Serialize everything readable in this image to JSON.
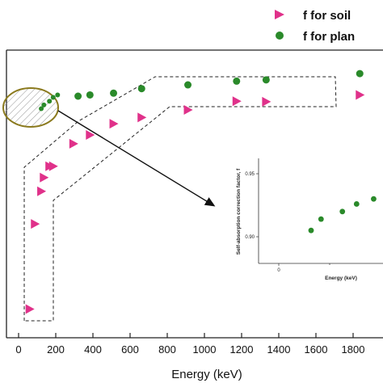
{
  "chart_data": [
    {
      "type": "scatter",
      "xlabel": "Energy (keV)",
      "ylabel": "",
      "xlim": [
        -20,
        1900
      ],
      "x_ticks": [
        "0",
        "200",
        "400",
        "600",
        "800",
        "1000",
        "1200",
        "1400",
        "1600",
        "1800"
      ],
      "legend_position": "top-right",
      "series": [
        {
          "name": "f for soil",
          "marker": "triangle-right",
          "color": "#e0318a",
          "points": [
            {
              "x": 59.5,
              "y": 0.05
            },
            {
              "x": 88,
              "y": 0.39
            },
            {
              "x": 122,
              "y": 0.52
            },
            {
              "x": 136,
              "y": 0.575
            },
            {
              "x": 166,
              "y": 0.62
            },
            {
              "x": 186,
              "y": 0.62
            },
            {
              "x": 295,
              "y": 0.71
            },
            {
              "x": 384,
              "y": 0.745
            },
            {
              "x": 511,
              "y": 0.79
            },
            {
              "x": 662,
              "y": 0.815
            },
            {
              "x": 911,
              "y": 0.845
            },
            {
              "x": 1173,
              "y": 0.88
            },
            {
              "x": 1332,
              "y": 0.878
            },
            {
              "x": 1836,
              "y": 0.905
            }
          ]
        },
        {
          "name": "f for plan",
          "marker": "circle",
          "color": "#2a8a2a",
          "points": [
            {
              "x": 122,
              "y": 0.85
            },
            {
              "x": 136,
              "y": 0.865
            },
            {
              "x": 166,
              "y": 0.88
            },
            {
              "x": 186,
              "y": 0.895
            },
            {
              "x": 210,
              "y": 0.905
            },
            {
              "x": 320,
              "y": 0.9
            },
            {
              "x": 384,
              "y": 0.905
            },
            {
              "x": 511,
              "y": 0.912
            },
            {
              "x": 662,
              "y": 0.93
            },
            {
              "x": 911,
              "y": 0.945
            },
            {
              "x": 1173,
              "y": 0.96
            },
            {
              "x": 1332,
              "y": 0.965
            },
            {
              "x": 1836,
              "y": 0.99
            }
          ]
        }
      ]
    },
    {
      "type": "scatter",
      "xlabel": "Energy (keV)",
      "ylabel": "Self-absorption correction factor, f",
      "x_ticks": [
        "0"
      ],
      "y_ticks": [
        "0.90",
        "0.95"
      ],
      "ylim": [
        0.88,
        0.96
      ],
      "series": [
        {
          "name": "f for plan",
          "marker": "circle",
          "color": "#2a8a2a",
          "points": [
            {
              "x": 122,
              "y": 0.905
            },
            {
              "x": 136,
              "y": 0.914
            },
            {
              "x": 166,
              "y": 0.92
            },
            {
              "x": 186,
              "y": 0.926
            },
            {
              "x": 210,
              "y": 0.93
            }
          ]
        }
      ]
    }
  ]
}
